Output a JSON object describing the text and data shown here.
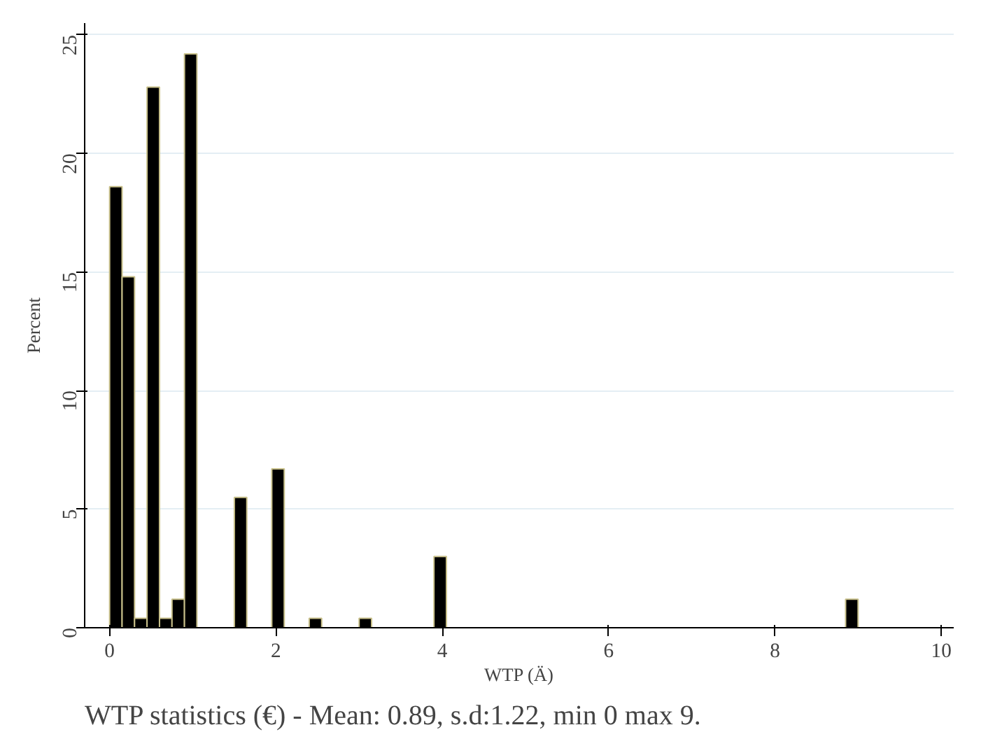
{
  "chart_data": {
    "type": "histogram",
    "xlabel": "WTP (Ä)",
    "ylabel": "Percent",
    "bins": [
      0,
      0.15,
      0.3,
      0.45,
      0.6,
      0.75,
      0.9,
      1.05,
      1.2,
      1.35,
      1.5,
      1.65,
      1.8,
      1.95,
      2.1,
      2.25,
      2.4,
      2.55,
      2.7,
      2.85,
      3,
      3.15,
      3.3,
      3.45,
      3.6,
      3.75,
      3.9,
      4.05,
      4.2,
      4.35,
      4.5,
      4.65,
      4.8,
      4.95,
      5.1,
      5.25,
      5.4,
      5.55,
      5.7,
      5.85,
      6,
      6.15,
      6.3,
      6.45,
      6.6,
      6.75,
      6.9,
      7.05,
      7.2,
      7.35,
      7.5,
      7.65,
      7.8,
      7.95,
      8.1,
      8.25,
      8.4,
      8.55,
      8.7,
      8.85,
      9
    ],
    "values": [
      18.6,
      14.8,
      0.4,
      22.8,
      0.4,
      1.2,
      24.2,
      0,
      0,
      0,
      5.5,
      0,
      0,
      6.7,
      0,
      0,
      0.4,
      0,
      0,
      0,
      0.4,
      0,
      0,
      0,
      0,
      0,
      3.0,
      0,
      0,
      0,
      0,
      0,
      0,
      0,
      0,
      0,
      0,
      0,
      0,
      0,
      0,
      0,
      0,
      0,
      0,
      0,
      0,
      0,
      0,
      0,
      0,
      0,
      0,
      0,
      0,
      0,
      0,
      0,
      0,
      1.2
    ],
    "color": "#000000",
    "xlim": [
      -0.3,
      10.15
    ],
    "ylim": [
      0,
      25.5
    ],
    "xticks": [
      0,
      2,
      4,
      6,
      8,
      10
    ],
    "yticks": [
      0,
      5,
      10,
      15,
      20,
      25
    ],
    "grid": "y",
    "annotations": [
      "WTP statistics (€) - Mean: 0.89, s.d:1.22, min 0 max 9."
    ]
  }
}
